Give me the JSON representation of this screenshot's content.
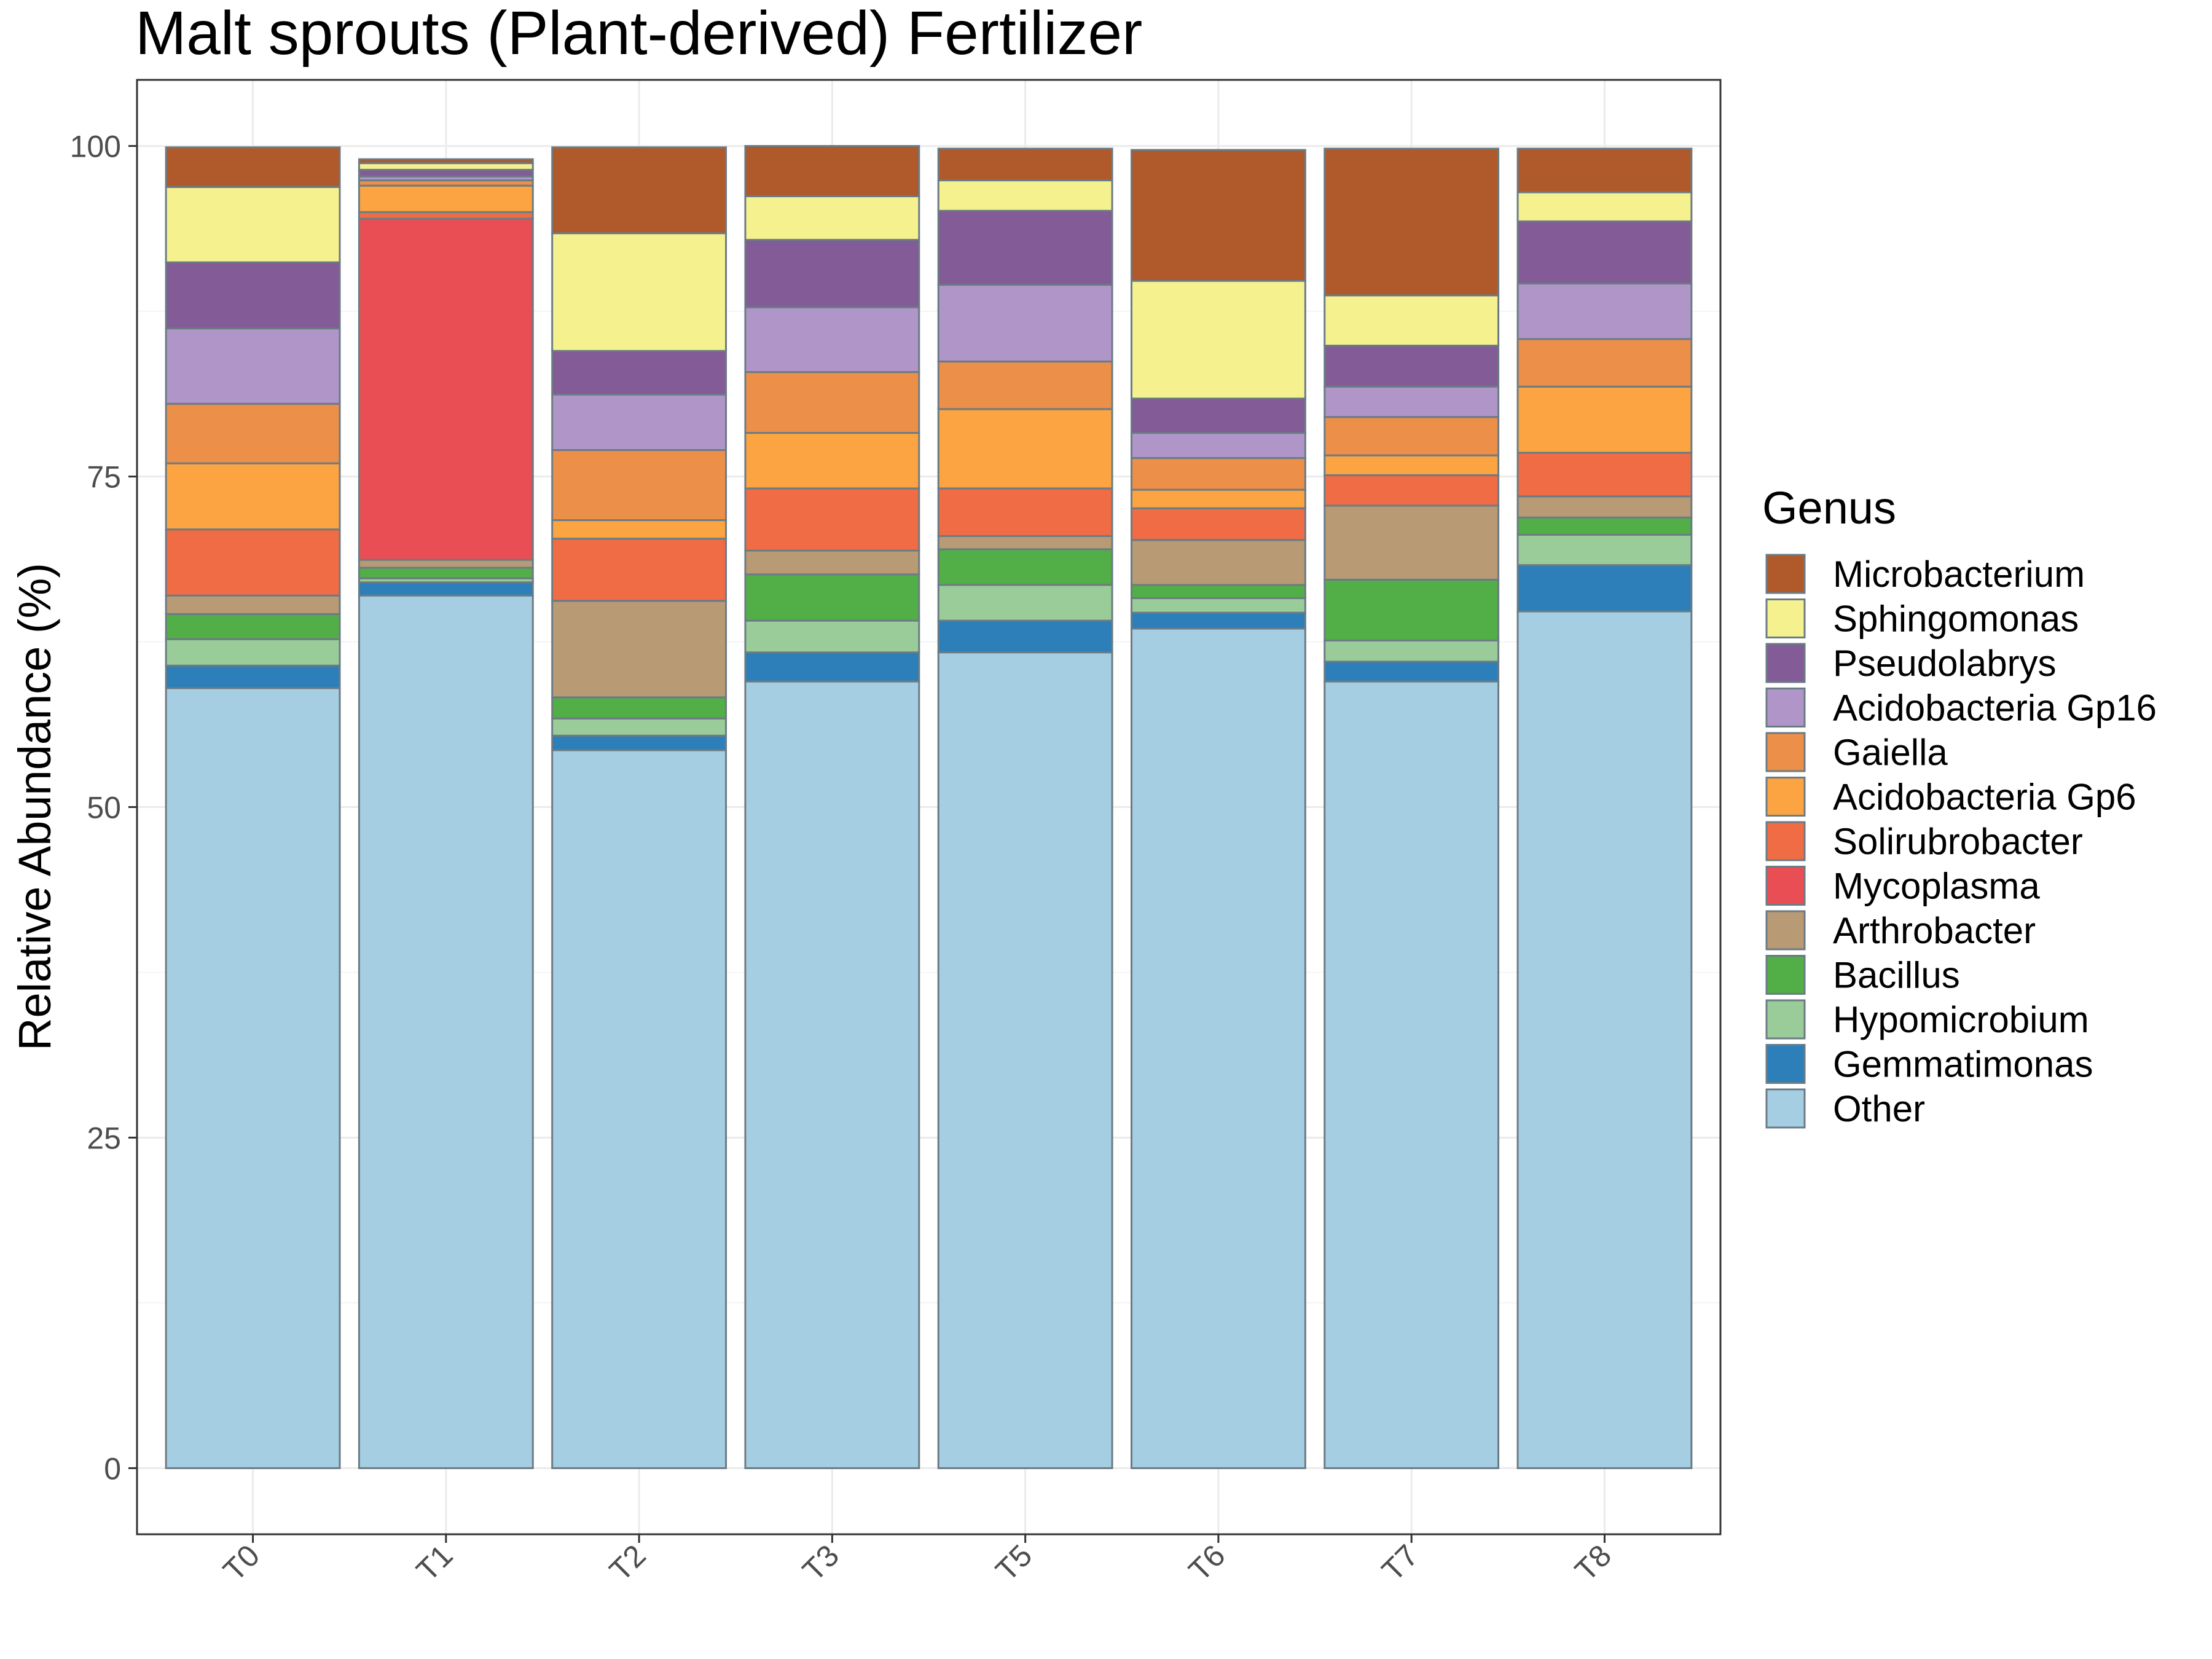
{
  "chart_data": {
    "type": "bar",
    "stacked": true,
    "title": "Malt sprouts (Plant-derived) Fertilizer",
    "xlabel": "",
    "ylabel": "Relative Abundance (%)",
    "ylim": [
      -5,
      105
    ],
    "yticks": [
      0,
      25,
      50,
      75,
      100
    ],
    "grid": true,
    "legend_title": "Genus",
    "legend_position": "right",
    "categories": [
      "T0",
      "T1",
      "T2",
      "T3",
      "T5",
      "T6",
      "T7",
      "T8"
    ],
    "series": [
      {
        "name": "Other",
        "color": "#a6cee3",
        "values": [
          59.0,
          66.0,
          54.3,
          59.5,
          61.7,
          63.5,
          59.5,
          64.8
        ]
      },
      {
        "name": "Gemmatimonas",
        "color": "#2c7fb8",
        "values": [
          1.7,
          1.0,
          1.1,
          2.2,
          2.4,
          1.2,
          1.5,
          3.5
        ]
      },
      {
        "name": "Hypomicrobium",
        "color": "#99cc99",
        "values": [
          2.0,
          0.3,
          1.3,
          2.4,
          2.7,
          1.1,
          1.6,
          2.3
        ]
      },
      {
        "name": "Bacillus",
        "color": "#52ae46",
        "values": [
          1.9,
          0.8,
          1.6,
          3.5,
          2.7,
          1.0,
          4.6,
          1.3
        ]
      },
      {
        "name": "Arthrobacter",
        "color": "#b89a74",
        "values": [
          1.4,
          0.6,
          7.3,
          1.8,
          1.0,
          3.4,
          5.6,
          1.6
        ]
      },
      {
        "name": "Mycoplasma",
        "color": "#e84e54",
        "values": [
          0,
          25.8,
          0,
          0,
          0,
          0,
          0,
          0
        ]
      },
      {
        "name": "Solirubrobacter",
        "color": "#f06c45",
        "values": [
          5.0,
          0.5,
          4.7,
          4.7,
          3.6,
          2.4,
          2.3,
          3.3
        ]
      },
      {
        "name": "Acidobacteria Gp6",
        "color": "#fca441",
        "values": [
          5.0,
          2.0,
          1.4,
          4.2,
          6.0,
          1.4,
          1.5,
          5.0
        ]
      },
      {
        "name": "Gaiella",
        "color": "#ec8f48",
        "values": [
          4.5,
          0.4,
          5.3,
          4.6,
          3.6,
          2.4,
          2.9,
          3.6
        ]
      },
      {
        "name": "Acidobacteria Gp16",
        "color": "#b095c8",
        "values": [
          5.7,
          0.3,
          4.2,
          4.9,
          5.8,
          1.9,
          2.3,
          4.2
        ]
      },
      {
        "name": "Pseudolabrys",
        "color": "#825b97",
        "values": [
          5.0,
          0.5,
          3.3,
          5.1,
          5.6,
          2.6,
          3.1,
          4.7
        ]
      },
      {
        "name": "Sphingomonas",
        "color": "#f6f18f",
        "values": [
          5.7,
          0.5,
          8.9,
          3.3,
          2.3,
          8.9,
          3.8,
          2.2
        ]
      },
      {
        "name": "Microbacterium",
        "color": "#b0592a",
        "values": [
          3.0,
          0.3,
          6.5,
          3.8,
          2.4,
          9.9,
          11.1,
          3.3
        ]
      }
    ],
    "legend_order": [
      "Microbacterium",
      "Sphingomonas",
      "Pseudolabrys",
      "Acidobacteria Gp16",
      "Gaiella",
      "Acidobacteria Gp6",
      "Solirubrobacter",
      "Mycoplasma",
      "Arthrobacter",
      "Bacillus",
      "Hypomicrobium",
      "Gemmatimonas",
      "Other"
    ]
  }
}
